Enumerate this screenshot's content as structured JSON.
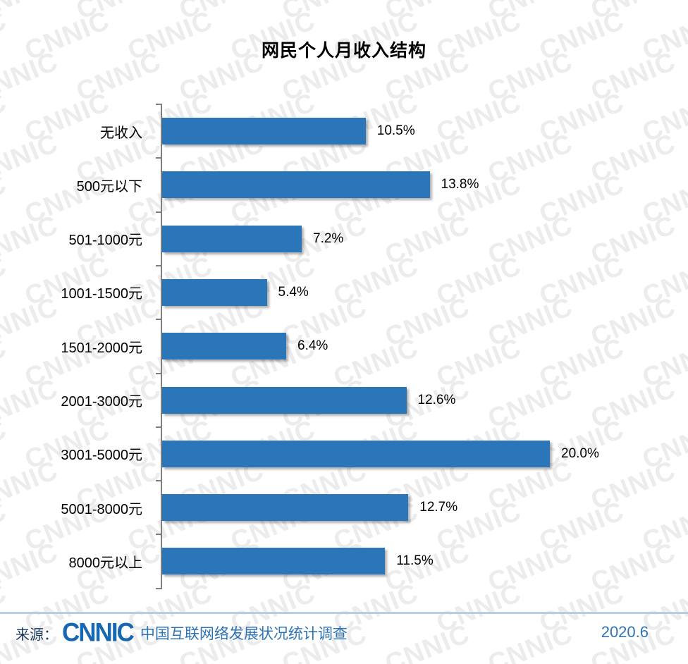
{
  "title": "网民个人月收入结构",
  "watermark_text": "CNNIC",
  "chart_data": {
    "type": "bar",
    "orientation": "horizontal",
    "title": "网民个人月收入结构",
    "categories": [
      "无收入",
      "500元以下",
      "501-1000元",
      "1001-1500元",
      "1501-2000元",
      "2001-3000元",
      "3001-5000元",
      "5001-8000元",
      "8000元以上"
    ],
    "values": [
      10.5,
      13.8,
      7.2,
      5.4,
      6.4,
      12.6,
      20.0,
      12.7,
      11.5
    ],
    "value_labels": [
      "10.5%",
      "13.8%",
      "7.2%",
      "5.4%",
      "6.4%",
      "12.6%",
      "20.0%",
      "12.7%",
      "11.5%"
    ],
    "xlabel": "",
    "ylabel": "",
    "xlim": [
      0,
      22
    ],
    "grid": false,
    "legend": "none",
    "bar_color": "#2b76b9",
    "axis_color": "#7f7f7f",
    "value_label_position": "right-of-bar"
  },
  "footer": {
    "source_prefix": "来源：",
    "logo_text": "CNNIC",
    "source_text": "中国互联网络发展状况统计调查",
    "date": "2020.6",
    "accent_color": "#2e74b5",
    "divider_color": "#b9cde5"
  }
}
